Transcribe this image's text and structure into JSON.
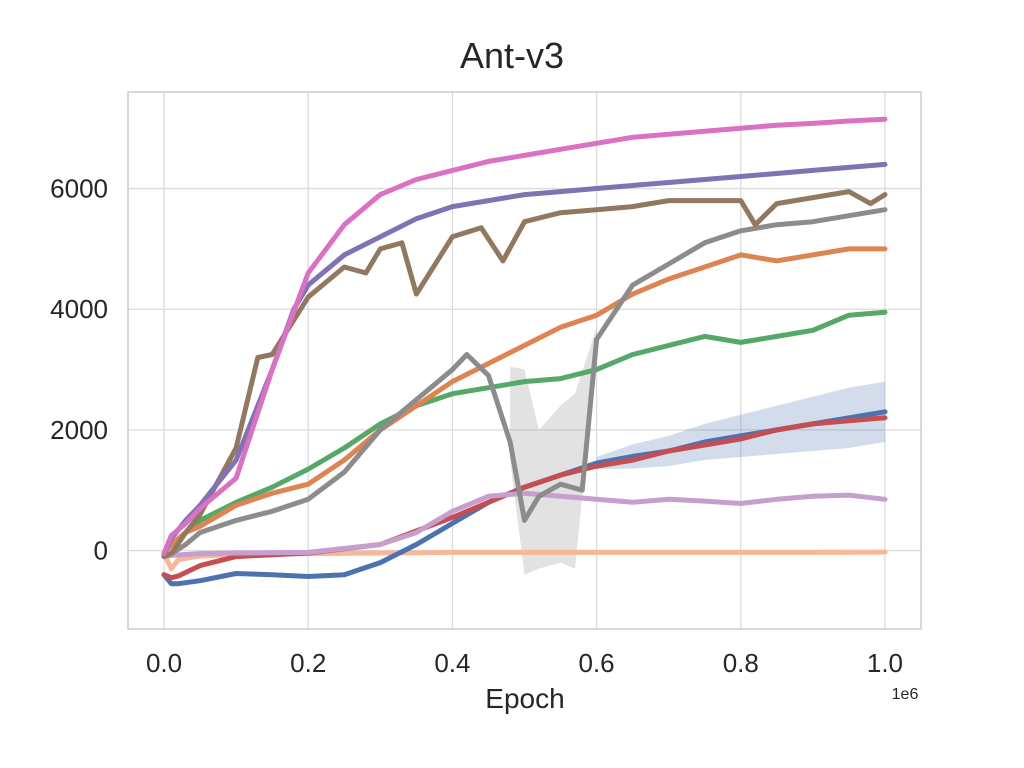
{
  "chart_data": {
    "type": "line",
    "title": "Ant-v3",
    "xlabel": "Epoch",
    "ylabel": "",
    "x_offset_label": "1e6",
    "xlim": [
      -0.05,
      1.05
    ],
    "ylim": [
      -1300,
      7600
    ],
    "xticks": [
      0.0,
      0.2,
      0.4,
      0.6,
      0.8,
      1.0
    ],
    "xtick_labels": [
      "0.0",
      "0.2",
      "0.4",
      "0.6",
      "0.8",
      "1.0"
    ],
    "yticks": [
      0,
      2000,
      4000,
      6000
    ],
    "ytick_labels": [
      "0",
      "2000",
      "4000",
      "6000"
    ],
    "grid": true,
    "legend": "none",
    "series": [
      {
        "color": "#f7b89a",
        "x": [
          0,
          0.01,
          0.02,
          0.05,
          0.1,
          0.2,
          0.3,
          0.4,
          0.5,
          0.6,
          0.7,
          0.8,
          0.9,
          1.0
        ],
        "y": [
          -50,
          -300,
          -150,
          -90,
          -70,
          -50,
          -40,
          -30,
          -30,
          -30,
          -30,
          -30,
          -30,
          -25
        ]
      },
      {
        "color": "#4c72b0",
        "x": [
          0,
          0.01,
          0.02,
          0.05,
          0.1,
          0.15,
          0.2,
          0.25,
          0.3,
          0.35,
          0.4,
          0.45,
          0.5,
          0.55,
          0.6,
          0.65,
          0.7,
          0.75,
          0.8,
          0.85,
          0.9,
          0.95,
          1.0
        ],
        "y": [
          -400,
          -550,
          -550,
          -500,
          -380,
          -400,
          -430,
          -400,
          -200,
          100,
          450,
          800,
          1050,
          1250,
          1450,
          1560,
          1650,
          1800,
          1900,
          2000,
          2100,
          2200,
          2300
        ],
        "band": [
          -0.6,
          0.6
        ],
        "band_start": 0.6,
        "band_width": [
          100,
          200,
          250,
          300,
          350,
          400,
          450,
          500,
          500
        ]
      },
      {
        "color": "#c44e52",
        "x": [
          0,
          0.01,
          0.02,
          0.05,
          0.1,
          0.2,
          0.3,
          0.4,
          0.5,
          0.55,
          0.6,
          0.65,
          0.7,
          0.75,
          0.8,
          0.85,
          0.9,
          0.95,
          1.0
        ],
        "y": [
          -400,
          -450,
          -420,
          -250,
          -100,
          -40,
          100,
          550,
          1050,
          1250,
          1400,
          1500,
          1650,
          1750,
          1850,
          2000,
          2100,
          2150,
          2200
        ]
      },
      {
        "color": "#c79fcf",
        "x": [
          0,
          0.01,
          0.05,
          0.1,
          0.2,
          0.3,
          0.35,
          0.4,
          0.45,
          0.5,
          0.55,
          0.6,
          0.65,
          0.7,
          0.75,
          0.8,
          0.85,
          0.9,
          0.95,
          1.0
        ],
        "y": [
          -100,
          -80,
          -50,
          -40,
          -30,
          100,
          300,
          650,
          900,
          950,
          900,
          850,
          800,
          850,
          820,
          780,
          850,
          900,
          920,
          850
        ]
      },
      {
        "color": "#55a868",
        "x": [
          0,
          0.01,
          0.03,
          0.05,
          0.1,
          0.15,
          0.2,
          0.25,
          0.3,
          0.35,
          0.4,
          0.45,
          0.5,
          0.55,
          0.6,
          0.65,
          0.7,
          0.75,
          0.8,
          0.85,
          0.9,
          0.95,
          1.0
        ],
        "y": [
          -50,
          100,
          300,
          500,
          800,
          1050,
          1350,
          1700,
          2100,
          2400,
          2600,
          2700,
          2800,
          2850,
          3000,
          3250,
          3400,
          3550,
          3450,
          3550,
          3650,
          3900,
          3950
        ]
      },
      {
        "color": "#dd8452",
        "x": [
          0,
          0.01,
          0.03,
          0.05,
          0.1,
          0.15,
          0.2,
          0.25,
          0.3,
          0.35,
          0.4,
          0.45,
          0.5,
          0.55,
          0.6,
          0.65,
          0.7,
          0.75,
          0.8,
          0.85,
          0.9,
          0.95,
          1.0
        ],
        "y": [
          -50,
          100,
          300,
          400,
          750,
          950,
          1100,
          1500,
          2000,
          2400,
          2800,
          3100,
          3400,
          3700,
          3900,
          4250,
          4500,
          4700,
          4900,
          4800,
          4900,
          5000,
          5000
        ]
      },
      {
        "color": "#8c8c8c",
        "x": [
          0,
          0.01,
          0.03,
          0.05,
          0.1,
          0.15,
          0.2,
          0.25,
          0.3,
          0.35,
          0.4,
          0.42,
          0.45,
          0.48,
          0.5,
          0.52,
          0.55,
          0.58,
          0.6,
          0.65,
          0.7,
          0.75,
          0.8,
          0.85,
          0.9,
          0.95,
          1.0
        ],
        "y": [
          -80,
          -50,
          100,
          300,
          500,
          650,
          850,
          1300,
          2000,
          2500,
          3000,
          3250,
          2900,
          1800,
          500,
          900,
          1100,
          1000,
          3500,
          4400,
          4750,
          5100,
          5300,
          5400,
          5450,
          5550,
          5650
        ],
        "band_pts": [
          [
            0.48,
            1500,
            3050
          ],
          [
            0.5,
            -400,
            3000
          ],
          [
            0.52,
            -300,
            2000
          ],
          [
            0.55,
            -200,
            2400
          ],
          [
            0.57,
            -300,
            2600
          ],
          [
            0.6,
            3300,
            3700
          ]
        ]
      },
      {
        "color": "#937860",
        "x": [
          0,
          0.01,
          0.03,
          0.05,
          0.1,
          0.13,
          0.15,
          0.2,
          0.25,
          0.28,
          0.3,
          0.33,
          0.35,
          0.4,
          0.44,
          0.47,
          0.5,
          0.55,
          0.6,
          0.65,
          0.7,
          0.75,
          0.8,
          0.82,
          0.85,
          0.9,
          0.95,
          0.98,
          1.0
        ],
        "y": [
          -100,
          -50,
          300,
          600,
          1700,
          3200,
          3250,
          4200,
          4700,
          4600,
          5000,
          5100,
          4250,
          5200,
          5350,
          4800,
          5450,
          5600,
          5650,
          5700,
          5800,
          5800,
          5800,
          5400,
          5750,
          5850,
          5950,
          5750,
          5900
        ]
      },
      {
        "color": "#8172b3",
        "x": [
          0,
          0.01,
          0.03,
          0.05,
          0.1,
          0.15,
          0.18,
          0.2,
          0.25,
          0.3,
          0.35,
          0.4,
          0.45,
          0.5,
          0.55,
          0.6,
          0.65,
          0.7,
          0.75,
          0.8,
          0.85,
          0.9,
          0.95,
          1.0
        ],
        "y": [
          -50,
          200,
          500,
          750,
          1500,
          3000,
          4000,
          4400,
          4900,
          5200,
          5500,
          5700,
          5800,
          5900,
          5950,
          6000,
          6050,
          6100,
          6150,
          6200,
          6250,
          6300,
          6350,
          6400
        ]
      },
      {
        "color": "#da71c2",
        "x": [
          0,
          0.01,
          0.03,
          0.05,
          0.1,
          0.15,
          0.2,
          0.25,
          0.3,
          0.35,
          0.4,
          0.45,
          0.5,
          0.55,
          0.6,
          0.65,
          0.7,
          0.75,
          0.8,
          0.85,
          0.9,
          0.95,
          1.0
        ],
        "y": [
          -50,
          250,
          450,
          700,
          1200,
          3000,
          4600,
          5400,
          5900,
          6150,
          6300,
          6450,
          6550,
          6650,
          6750,
          6850,
          6900,
          6950,
          7000,
          7050,
          7080,
          7120,
          7150
        ]
      }
    ]
  }
}
